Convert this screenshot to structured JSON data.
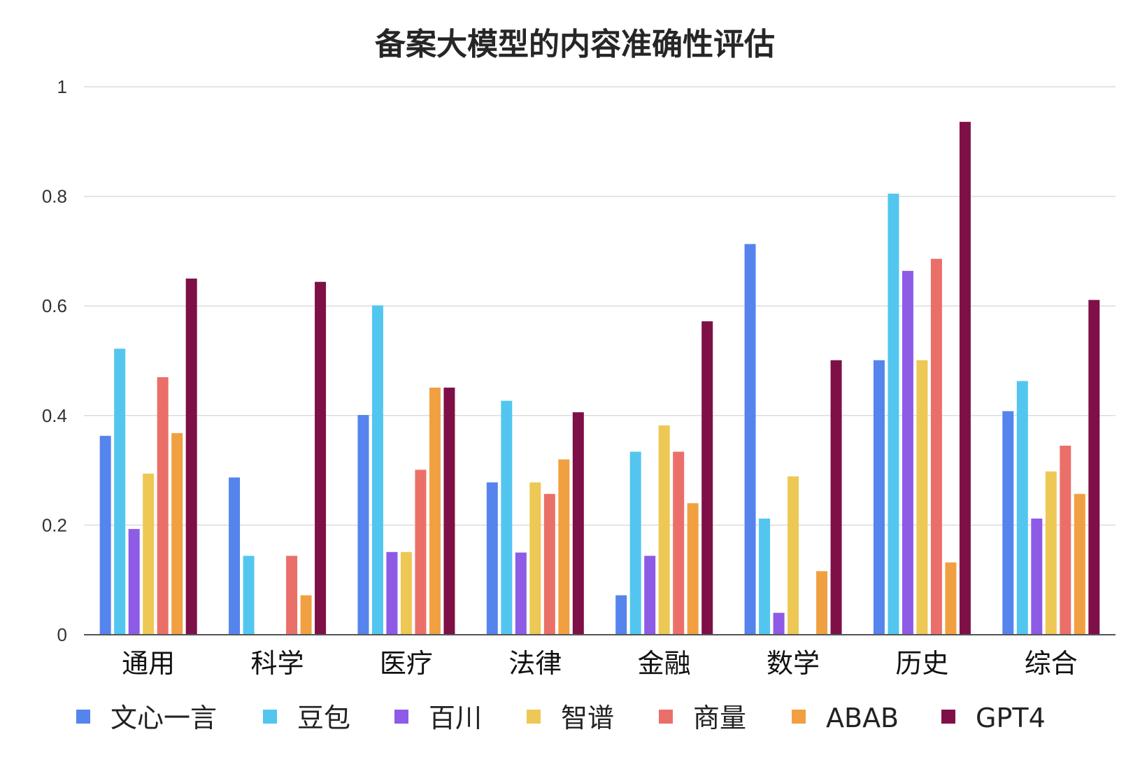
{
  "chart_data": {
    "type": "bar",
    "title": "备案大模型的内容准确性评估",
    "xlabel": "",
    "ylabel": "",
    "ylim": [
      0,
      1
    ],
    "yticks": [
      "0",
      "0.2",
      "0.4",
      "0.6",
      "0.8",
      "1"
    ],
    "ytick_values": [
      0,
      0.2,
      0.4,
      0.6,
      0.8,
      1
    ],
    "grid": true,
    "legend_position": "bottom",
    "categories": [
      "通用",
      "科学",
      "医疗",
      "法律",
      "金融",
      "数学",
      "历史",
      "综合"
    ],
    "series": [
      {
        "name": "文心一言",
        "color": "#5584ED",
        "values": [
          0.363,
          0.287,
          0.401,
          0.278,
          0.072,
          0.713,
          0.501,
          0.408
        ]
      },
      {
        "name": "豆包",
        "color": "#53C6F0",
        "values": [
          0.522,
          0.144,
          0.601,
          0.427,
          0.334,
          0.212,
          0.805,
          0.463
        ]
      },
      {
        "name": "百川",
        "color": "#8E5BE6",
        "values": [
          0.193,
          0,
          0.151,
          0.15,
          0.144,
          0.04,
          0.664,
          0.212
        ]
      },
      {
        "name": "智谱",
        "color": "#EDC854",
        "values": [
          0.294,
          0,
          0.151,
          0.278,
          0.382,
          0.289,
          0.501,
          0.298
        ]
      },
      {
        "name": "商量",
        "color": "#EB6F69",
        "values": [
          0.47,
          0.144,
          0.301,
          0.257,
          0.334,
          0,
          0.686,
          0.345
        ]
      },
      {
        "name": "ABAB",
        "color": "#F1A041",
        "values": [
          0.368,
          0.072,
          0.451,
          0.32,
          0.24,
          0.116,
          0.132,
          0.257
        ]
      },
      {
        "name": "GPT4",
        "color": "#7E1047",
        "values": [
          0.65,
          0.644,
          0.451,
          0.406,
          0.572,
          0.501,
          0.936,
          0.611
        ]
      }
    ]
  }
}
